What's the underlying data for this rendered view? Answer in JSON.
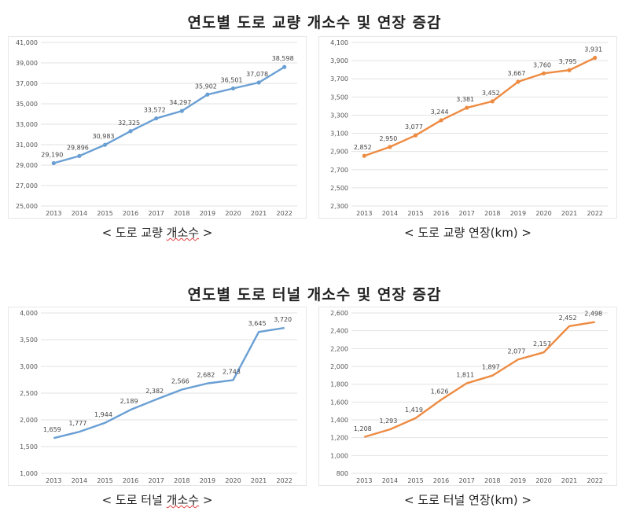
{
  "sections": [
    {
      "title": "연도별 도로 교량 개소수 및 연장 증감"
    },
    {
      "title": "연도별 도로 터널 개소수 및 연장 증감"
    }
  ],
  "captions": [
    {
      "lead": "< 도로 교량 ",
      "mark": "개소수",
      "tail": " >"
    },
    {
      "lead": "< 도로 교량 연장(km) >",
      "mark": "",
      "tail": ""
    },
    {
      "lead": "< 도로 터널 ",
      "mark": "개소수",
      "tail": " >"
    },
    {
      "lead": "< 도로 터널 연장(km) >",
      "mark": "",
      "tail": ""
    }
  ],
  "chart_data": [
    {
      "type": "line",
      "color": "#6a9fd4",
      "x": [
        "2013",
        "2014",
        "2015",
        "2016",
        "2017",
        "2018",
        "2019",
        "2020",
        "2021",
        "2022"
      ],
      "values": [
        29190,
        29896,
        30983,
        32325,
        33572,
        34297,
        35902,
        36501,
        37078,
        38598
      ],
      "labels": [
        "29,190",
        "29,896",
        "30,983",
        "32,325",
        "33,572",
        "34,297",
        "35,902",
        "36,501",
        "37,078",
        "38,598"
      ],
      "ylim": [
        25000,
        41000
      ],
      "yticks": [
        25000,
        27000,
        29000,
        31000,
        33000,
        35000,
        37000,
        39000,
        41000
      ],
      "yticklabels": [
        "25,000",
        "27,000",
        "29,000",
        "31,000",
        "33,000",
        "35,000",
        "37,000",
        "39,000",
        "41,000"
      ],
      "markers": true
    },
    {
      "type": "line",
      "color": "#ed8b42",
      "x": [
        "2013",
        "2014",
        "2015",
        "2016",
        "2017",
        "2018",
        "2019",
        "2020",
        "2021",
        "2022"
      ],
      "values": [
        2852,
        2950,
        3077,
        3244,
        3381,
        3452,
        3667,
        3760,
        3795,
        3931
      ],
      "labels": [
        "2,852",
        "2,950",
        "3,077",
        "3,244",
        "3,381",
        "3,452",
        "3,667",
        "3,760",
        "3,795",
        "3,931"
      ],
      "ylim": [
        2300,
        4100
      ],
      "yticks": [
        2300,
        2500,
        2700,
        2900,
        3100,
        3300,
        3500,
        3700,
        3900,
        4100
      ],
      "yticklabels": [
        "2,300",
        "2,500",
        "2,700",
        "2,900",
        "3,100",
        "3,300",
        "3,500",
        "3,700",
        "3,900",
        "4,100"
      ],
      "markers": true
    },
    {
      "type": "line",
      "color": "#6a9fd4",
      "x": [
        "2013",
        "2014",
        "2015",
        "2016",
        "2017",
        "2018",
        "2019",
        "2020",
        "2021",
        "2022"
      ],
      "values": [
        1659,
        1777,
        1944,
        2189,
        2382,
        2566,
        2682,
        2743,
        3645,
        3720
      ],
      "labels": [
        "1,659",
        "1,777",
        "1,944",
        "2,189",
        "2,382",
        "2,566",
        "2,682",
        "2,743",
        "3,645",
        "3,720"
      ],
      "ylim": [
        1000,
        4000
      ],
      "yticks": [
        1000,
        1500,
        2000,
        2500,
        3000,
        3500,
        4000
      ],
      "yticklabels": [
        "1,000",
        "1,500",
        "2,000",
        "2,500",
        "3,000",
        "3,500",
        "4,000"
      ],
      "markers": false
    },
    {
      "type": "line",
      "color": "#ed8b42",
      "x": [
        "2013",
        "2014",
        "2015",
        "2016",
        "2017",
        "2018",
        "2019",
        "2020",
        "2021",
        "2022"
      ],
      "values": [
        1208,
        1293,
        1419,
        1626,
        1811,
        1897,
        2077,
        2157,
        2452,
        2498
      ],
      "labels": [
        "1,208",
        "1,293",
        "1,419",
        "1,626",
        "1,811",
        "1,897",
        "2,077",
        "2,157",
        "2,452",
        "2,498"
      ],
      "ylim": [
        800,
        2600
      ],
      "yticks": [
        800,
        1000,
        1200,
        1400,
        1600,
        1800,
        2000,
        2200,
        2400,
        2600
      ],
      "yticklabels": [
        "800",
        "1,000",
        "1,200",
        "1,400",
        "1,600",
        "1,800",
        "2,000",
        "2,200",
        "2,400",
        "2,600"
      ],
      "markers": false
    }
  ]
}
